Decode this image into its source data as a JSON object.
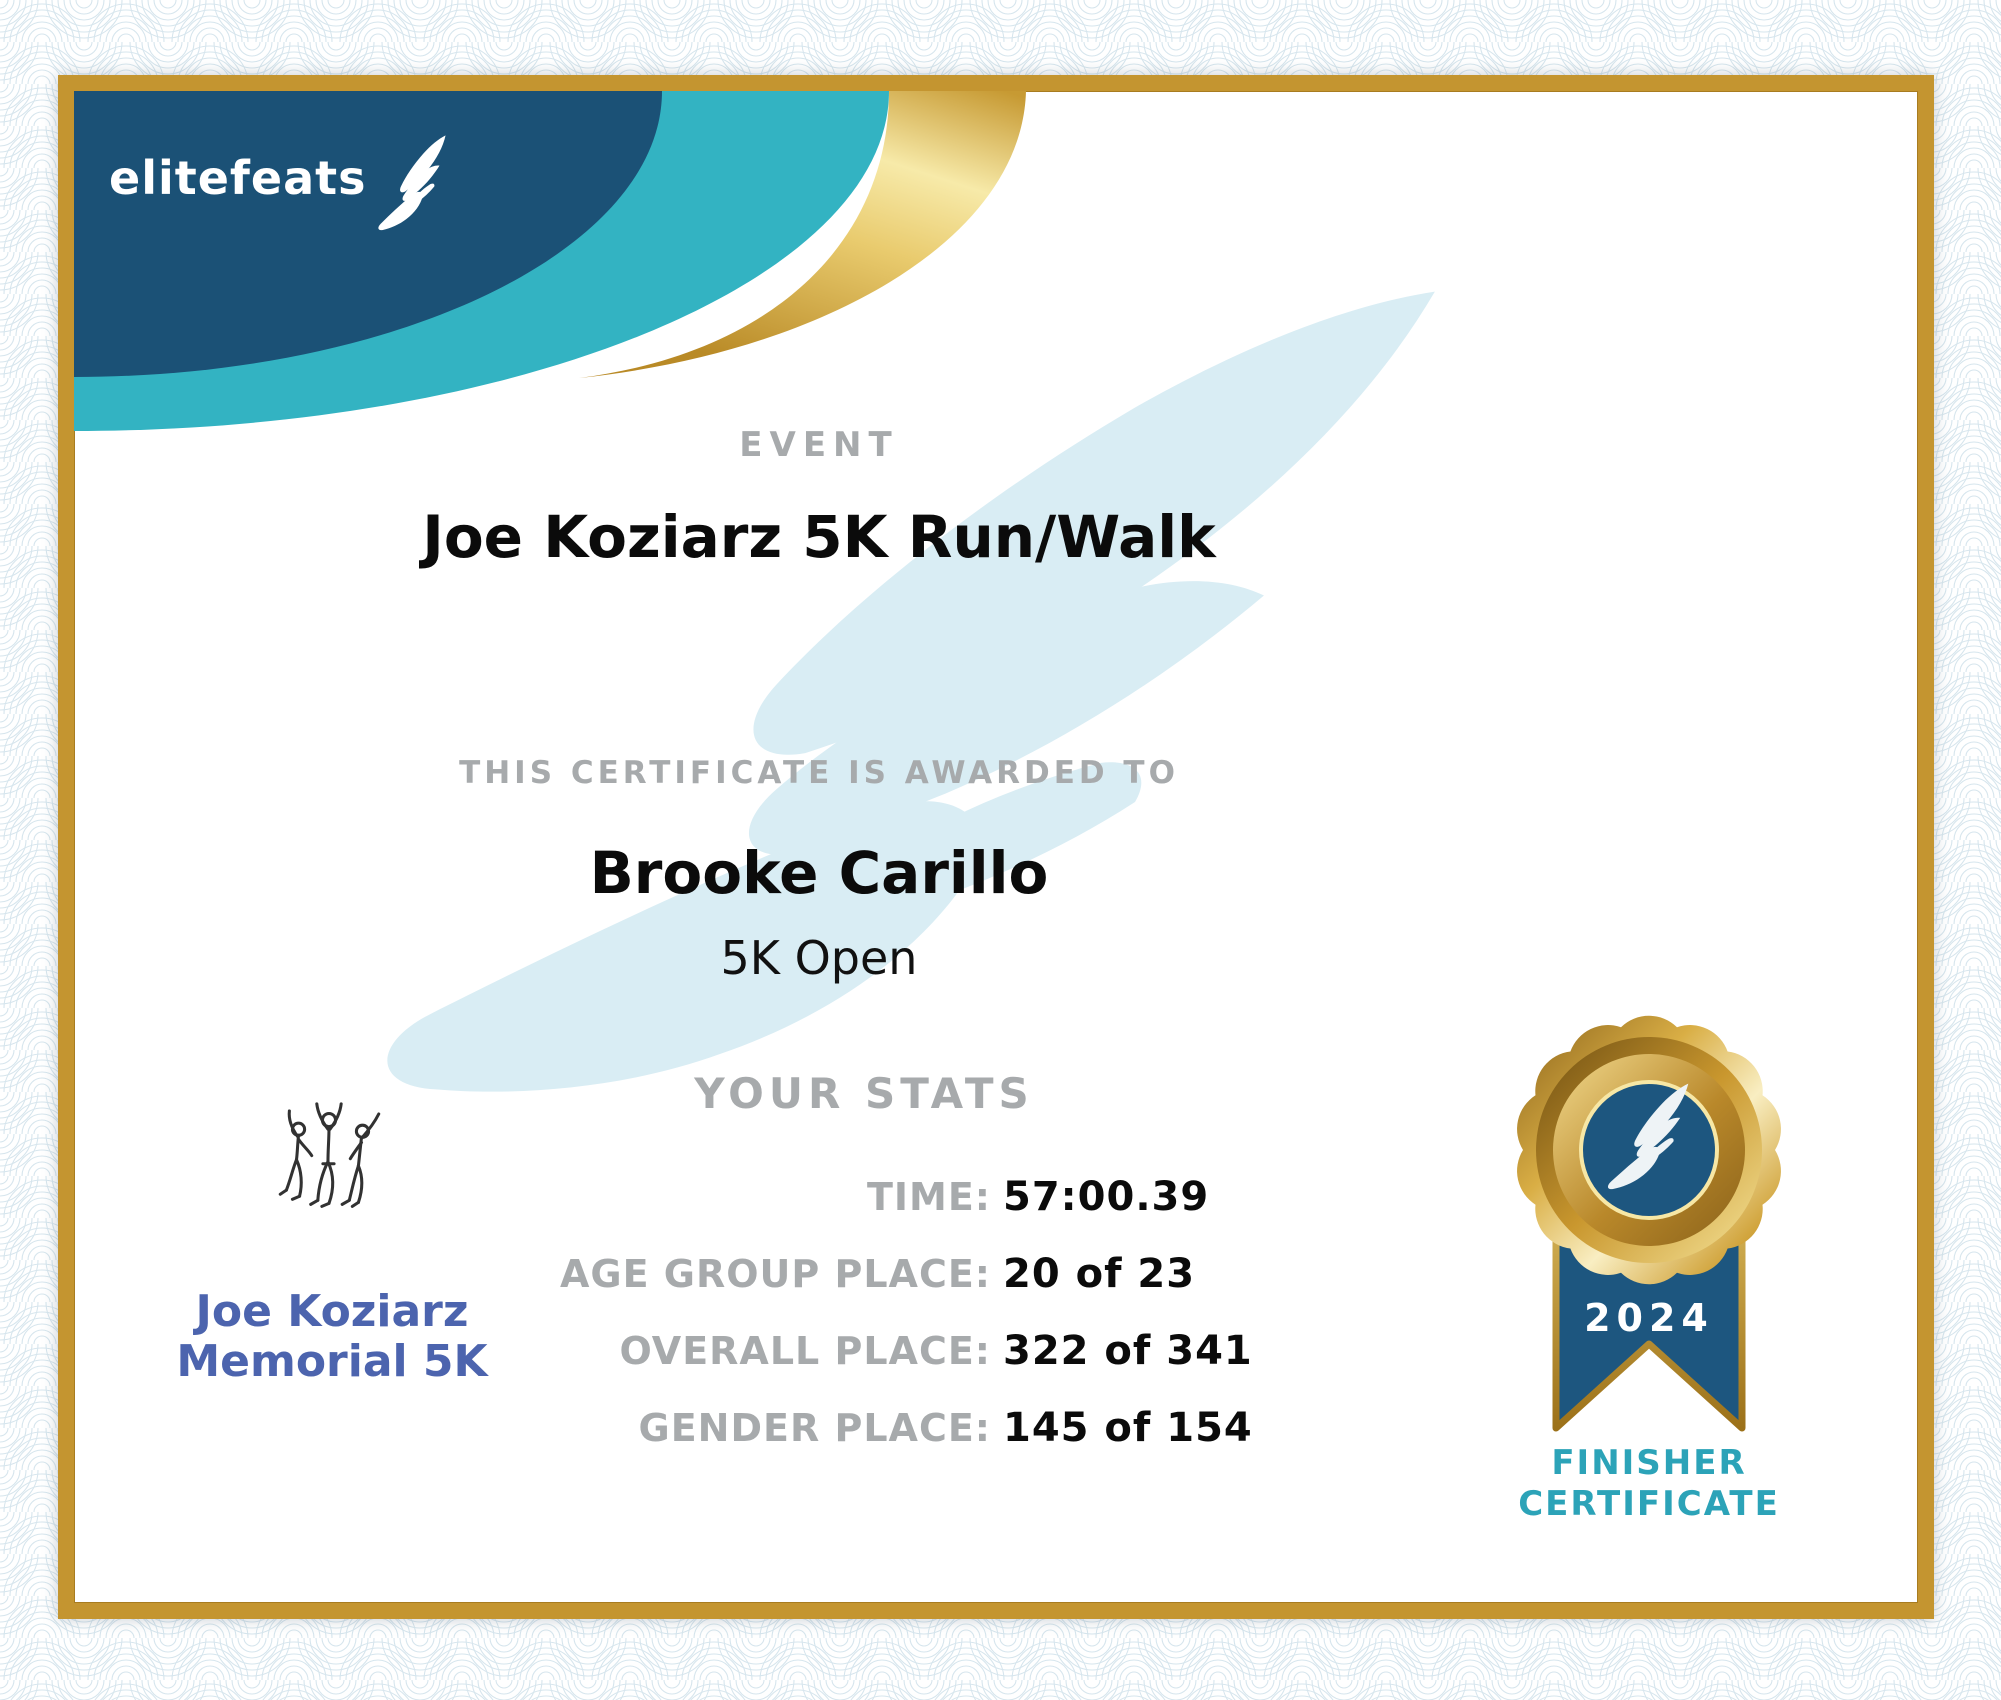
{
  "brand": {
    "logo_text": "elitefeats"
  },
  "header": {
    "event_label": "EVENT",
    "event_name": "Joe Koziarz 5K Run/Walk"
  },
  "award": {
    "intro": "THIS CERTIFICATE IS AWARDED TO",
    "recipient": "Brooke Carillo",
    "division": "5K Open"
  },
  "stats": {
    "heading": "YOUR STATS",
    "rows": [
      {
        "label": "TIME:",
        "value": "57:00.39"
      },
      {
        "label": "AGE GROUP PLACE:",
        "value": "20 of 23"
      },
      {
        "label": "OVERALL PLACE:",
        "value": "322 of 341"
      },
      {
        "label": "GENDER PLACE:",
        "value": "145 of 154"
      }
    ]
  },
  "sponsor": {
    "name_line1": "Joe Koziarz",
    "name_line2": "Memorial 5K"
  },
  "badge": {
    "year": "2024",
    "caption_line1": "FINISHER",
    "caption_line2": "CERTIFICATE"
  },
  "colors": {
    "navy": "#1b5176",
    "teal": "#33b3c2",
    "frame_gold": "#c49530",
    "badge_blue": "#1d567f",
    "caption_teal": "#2ca3b8",
    "sponsor_blue": "#4c64ae",
    "label_gray": "#a7aaac",
    "watermark_blue": "#d9edf4",
    "guilloche_line": "#ccdfe9"
  }
}
